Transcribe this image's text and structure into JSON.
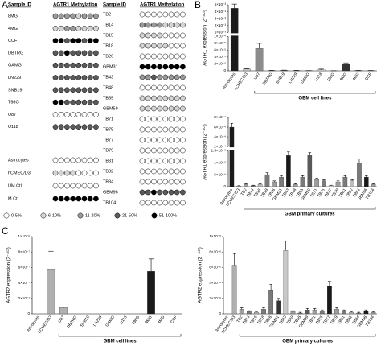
{
  "panel_labels": {
    "a": "A",
    "b": "B",
    "c": "C"
  },
  "methylation": {
    "left": {
      "header_sample": "Sample ID",
      "header_meth": "AGTR1 Methylation",
      "groups": [
        {
          "rows": [
            {
              "sample": "8MG",
              "levels": [
                2,
                2,
                2,
                2,
                1,
                2,
                2,
                2
              ]
            },
            {
              "sample": "4MG",
              "levels": [
                1,
                1,
                2,
                2,
                1,
                1,
                1,
                1
              ]
            },
            {
              "sample": "CCF",
              "levels": [
                4,
                4,
                3,
                4,
                4,
                3,
                4,
                4
              ]
            },
            {
              "sample": "DBTRG",
              "levels": [
                3,
                3,
                4,
                3,
                3,
                3,
                3,
                3
              ]
            },
            {
              "sample": "GAMG",
              "levels": [
                3,
                3,
                3,
                3,
                3,
                3,
                3,
                3
              ]
            },
            {
              "sample": "LN229",
              "levels": [
                3,
                3,
                3,
                3,
                3,
                3,
                3,
                3
              ]
            },
            {
              "sample": "SNB19",
              "levels": [
                3,
                3,
                3,
                3,
                3,
                3,
                3,
                3
              ]
            },
            {
              "sample": "T98G",
              "levels": [
                4,
                4,
                3,
                3,
                3,
                3,
                3,
                3
              ]
            },
            {
              "sample": "U87",
              "levels": [
                0,
                0,
                0,
                0,
                0,
                0,
                0,
                0
              ]
            },
            {
              "sample": "U118",
              "levels": [
                3,
                3,
                3,
                3,
                3,
                3,
                3,
                3
              ]
            }
          ]
        },
        {
          "rows": [
            {
              "sample": "Astrocytes",
              "levels": [
                0,
                0,
                0,
                0,
                0,
                0,
                0,
                0
              ]
            },
            {
              "sample": "hCMEC/D3",
              "levels": [
                1,
                1,
                1,
                1,
                0,
                0,
                0,
                0
              ]
            },
            {
              "sample": "UM Ctl",
              "levels": [
                0,
                0,
                0,
                0,
                0,
                0,
                0,
                0
              ]
            },
            {
              "sample": "M Ctl",
              "levels": [
                4,
                4,
                4,
                4,
                4,
                4,
                4,
                4
              ]
            }
          ]
        }
      ]
    },
    "right": {
      "header_sample": "Sample ID",
      "header_meth": "AGTR1 Methylation",
      "rows": [
        {
          "sample": "TB2",
          "levels": [
            0,
            0,
            0,
            0,
            0,
            0,
            0,
            0
          ]
        },
        {
          "sample": "TB14",
          "levels": [
            2,
            2,
            2,
            2,
            1,
            1,
            1,
            1
          ]
        },
        {
          "sample": "TB15",
          "levels": [
            1,
            1,
            1,
            1,
            0,
            0,
            0,
            0
          ]
        },
        {
          "sample": "TB18",
          "levels": [
            1,
            1,
            1,
            1,
            1,
            0,
            0,
            0
          ]
        },
        {
          "sample": "TB26",
          "levels": [
            0,
            0,
            0,
            0,
            0,
            0,
            0,
            0
          ]
        },
        {
          "sample": "GBM31",
          "levels": [
            4,
            4,
            4,
            4,
            4,
            4,
            4,
            4
          ]
        },
        {
          "sample": "TB43",
          "levels": [
            2,
            2,
            3,
            2,
            2,
            2,
            2,
            2
          ]
        },
        {
          "sample": "TB48",
          "levels": [
            0,
            0,
            0,
            0,
            0,
            0,
            0,
            0
          ]
        },
        {
          "sample": "TB55",
          "levels": [
            1,
            1,
            1,
            1,
            1,
            1,
            1,
            1
          ]
        },
        {
          "sample": "GBM59",
          "levels": [
            1,
            1,
            1,
            1,
            1,
            1,
            1,
            1
          ]
        },
        {
          "sample": "TB71",
          "levels": [
            0,
            0,
            0,
            0,
            0,
            0,
            0,
            0
          ]
        },
        {
          "sample": "TB75",
          "levels": [
            0,
            0,
            0,
            0,
            0,
            0,
            0,
            0
          ]
        },
        {
          "sample": "TB77",
          "levels": [
            0,
            0,
            0,
            0,
            0,
            0,
            0,
            0
          ]
        },
        {
          "sample": "TB79",
          "levels": [
            0,
            0,
            0,
            0,
            0,
            0,
            0,
            0
          ]
        },
        {
          "sample": "TB81",
          "levels": [
            0,
            0,
            0,
            0,
            0,
            0,
            0,
            0
          ]
        },
        {
          "sample": "TB82",
          "levels": [
            0,
            0,
            0,
            0,
            0,
            0,
            0,
            0
          ]
        },
        {
          "sample": "TB84",
          "levels": [
            0,
            0,
            0,
            0,
            0,
            0,
            0,
            0
          ]
        },
        {
          "sample": "GBM96",
          "levels": [
            3,
            3,
            4,
            3,
            3,
            3,
            3,
            3
          ]
        },
        {
          "sample": "TB104",
          "levels": [
            0,
            0,
            0,
            0,
            0,
            0,
            0,
            0
          ]
        }
      ]
    },
    "legend": {
      "labels": [
        "0-5%",
        "6-10%",
        "11-20%",
        "21-50%",
        "51-100%"
      ],
      "colors": [
        "#ffffff",
        "#d4d4d4",
        "#9a9a9a",
        "#5a5a5a",
        "#000000"
      ]
    }
  },
  "chart_data": [
    {
      "type": "bar",
      "ylabel": "AGTR1 expression (2⁻ᐞᶜᵗ)",
      "group_label": "GBM cell lines",
      "categories": [
        "Astrocytes",
        "hCMEC/D3",
        "U87",
        "DBTRG",
        "SNB19",
        "LN229",
        "GAMG",
        "U118",
        "T98G",
        "8MG",
        "4MG",
        "CCF"
      ],
      "values": [
        0.0045,
        5e-06,
        6.5e-05,
        1e-06,
        1.5e-06,
        1e-06,
        5e-07,
        3e-06,
        3e-07,
        2e-05,
        1e-06,
        8e-07
      ],
      "errors": [
        0.0006,
        1e-06,
        1.5e-05,
        3e-07,
        5e-07,
        3e-07,
        2e-07,
        2e-06,
        1e-07,
        3e-06,
        3e-07,
        2e-07
      ],
      "colors": [
        "#1a1a1a",
        "#c8c8c8",
        "#8c8c8c",
        "#9e9e9e",
        "#7a7a7a",
        "#7a7a7a",
        "#7a7a7a",
        "#d9d9d9",
        "#7a7a7a",
        "#333333",
        "#9e9e9e",
        "#7a7a7a"
      ],
      "ylim": [
        0,
        0.0001
      ],
      "yticks": [
        0,
        {
          "value": 2e-05,
          "label": "2×10⁻⁵"
        },
        {
          "value": 4e-05,
          "label": "4×10⁻⁵"
        },
        {
          "value": 6e-05,
          "label": "6×10⁻⁵"
        },
        {
          "value": 8e-05,
          "label": "8×10⁻⁵"
        },
        {
          "value": 0.0001,
          "label": "1×10⁻⁴"
        }
      ],
      "y_break": {
        "ylim": [
          0.001,
          0.005
        ],
        "yticks": [
          {
            "value": 0.001,
            "label": "1×10⁻³"
          },
          {
            "value": 0.002,
            "label": "2×10⁻³"
          },
          {
            "value": 0.003,
            "label": "3×10⁻³"
          },
          {
            "value": 0.004,
            "label": "4×10⁻³"
          },
          {
            "value": 0.005,
            "label": "5×10⁻³"
          }
        ]
      }
    },
    {
      "type": "bar",
      "ylabel": "AGTR1 expression (2⁻ᐞᶜᵗ)",
      "group_label": "GBM primary cultures",
      "categories": [
        "Astrocytes",
        "hCMEC/D3",
        "TB2",
        "TB14",
        "TB15",
        "TB18",
        "TB26",
        "GBM31",
        "TB43",
        "TB48",
        "TB55",
        "GBM59",
        "TB71",
        "TB75",
        "TB77",
        "TB79",
        "TB81",
        "TB82",
        "TB84",
        "GBM96",
        "TB104"
      ],
      "values": [
        0.0006,
        3e-07,
        1e-06,
        5e-07,
        1e-06,
        5e-06,
        2e-06,
        4e-06,
        1.3e-05,
        1e-06,
        4e-06,
        1.3e-05,
        3e-06,
        2.5e-06,
        5e-07,
        2e-06,
        4e-06,
        2.5e-06,
        1e-05,
        4e-06,
        1e-06
      ],
      "errors": [
        8e-05,
        1e-07,
        2e-07,
        1e-07,
        2e-07,
        8e-07,
        4e-07,
        6e-07,
        1.5e-06,
        2e-07,
        6e-07,
        1.2e-06,
        5e-07,
        4e-07,
        1e-07,
        4e-07,
        6e-07,
        4e-07,
        1.5e-06,
        6e-07,
        2e-07
      ],
      "colors": [
        "#1a1a1a",
        "#c8c8c8",
        "#9e9e9e",
        "#7a7a7a",
        "#bdbdbd",
        "#7a7a7a",
        "#9e9e9e",
        "#7a7a7a",
        "#1a1a1a",
        "#9e9e9e",
        "#7a7a7a",
        "#5a5a5a",
        "#9e9e9e",
        "#7a7a7a",
        "#d9d9d9",
        "#9e9e9e",
        "#7a7a7a",
        "#bdbdbd",
        "#7a7a7a",
        "#1a1a1a",
        "#9e9e9e"
      ],
      "ylim": [
        0,
        1.5e-05
      ],
      "yticks": [
        0,
        {
          "value": 5e-06,
          "label": "5×10⁻⁶"
        },
        {
          "value": 1e-05,
          "label": "1×10⁻⁵"
        },
        {
          "value": 1.5e-05,
          "label": "1.5×10⁻⁵"
        }
      ],
      "y_break": {
        "ylim": [
          0.0002,
          0.0008
        ],
        "yticks": [
          {
            "value": 0.0002,
            "label": "2×10⁻⁴"
          },
          {
            "value": 0.0004,
            "label": "4×10⁻⁴"
          },
          {
            "value": 0.0006,
            "label": "6×10⁻⁴"
          },
          {
            "value": 0.0008,
            "label": "8×10⁻⁴"
          }
        ]
      }
    },
    {
      "type": "bar",
      "ylabel": "AGTR2 expression (2⁻ᐞᶜᵗ)",
      "group_label": "GBM cell lines",
      "categories": [
        "Astrocytes",
        "hCMEC/D3",
        "U87",
        "DBTRG",
        "SNB19",
        "LN229",
        "GAMG",
        "U118",
        "T98G",
        "8MG",
        "4MG",
        "CCF"
      ],
      "values": [
        0,
        5.8e-07,
        8e-08,
        0,
        0,
        0,
        0,
        0,
        0,
        5.5e-07,
        0,
        0
      ],
      "errors": [
        0,
        2.3e-07,
        1e-08,
        0,
        0,
        0,
        0,
        0,
        0,
        1.6e-07,
        0,
        0
      ],
      "colors": [
        "#1a1a1a",
        "#b0b0b0",
        "#b0b0b0",
        "#9e9e9e",
        "#7a7a7a",
        "#7a7a7a",
        "#7a7a7a",
        "#d9d9d9",
        "#7a7a7a",
        "#1a1a1a",
        "#9e9e9e",
        "#7a7a7a"
      ],
      "ylim": [
        0,
        1e-06
      ],
      "yticks": [
        0,
        {
          "value": 2e-07,
          "label": "2×10⁻⁷"
        },
        {
          "value": 4e-07,
          "label": "4×10⁻⁷"
        },
        {
          "value": 6e-07,
          "label": "6×10⁻⁷"
        },
        {
          "value": 8e-07,
          "label": "8×10⁻⁷"
        },
        {
          "value": 1e-06,
          "label": "1×10⁻⁶"
        }
      ]
    },
    {
      "type": "bar",
      "ylabel": "AGTR2 expression (2⁻ᐞᶜᵗ)",
      "group_label": "GBM primary cultures",
      "categories": [
        "Astrocytes",
        "hCMEC/D3",
        "TB2",
        "TB14",
        "TB15",
        "TB18",
        "TB26",
        "GBM31",
        "TB43",
        "TB48",
        "TB55",
        "GBM59",
        "TB71",
        "TB75",
        "TB77",
        "TB79",
        "TB81",
        "TB82",
        "TB84",
        "GBM96",
        "TB104"
      ],
      "values": [
        0,
        6.3e-06,
        6e-07,
        3e-07,
        2e-07,
        6e-07,
        3e-06,
        1.7e-06,
        8.2e-06,
        3e-07,
        1e-07,
        5e-07,
        5e-07,
        4e-07,
        3.6e-06,
        6e-07,
        4e-07,
        2e-07,
        1e-07,
        4e-07,
        2e-07
      ],
      "errors": [
        0,
        1.5e-06,
        2e-07,
        1e-07,
        1e-07,
        2e-07,
        8e-07,
        3e-07,
        1.2e-06,
        1e-07,
        1e-07,
        2e-07,
        2e-07,
        1e-07,
        6e-07,
        2e-07,
        1e-07,
        1e-07,
        1e-07,
        1e-07,
        1e-07
      ],
      "colors": [
        "#1a1a1a",
        "#b0b0b0",
        "#9e9e9e",
        "#7a7a7a",
        "#bdbdbd",
        "#7a7a7a",
        "#7a7a7a",
        "#333333",
        "#c8c8c8",
        "#9e9e9e",
        "#7a7a7a",
        "#5a5a5a",
        "#9e9e9e",
        "#7a7a7a",
        "#1a1a1a",
        "#9e9e9e",
        "#7a7a7a",
        "#bdbdbd",
        "#7a7a7a",
        "#1a1a1a",
        "#9e9e9e"
      ],
      "ylim": [
        0,
        1e-05
      ],
      "yticks": [
        0,
        {
          "value": 2e-06,
          "label": "2×10⁻⁶"
        },
        {
          "value": 4e-06,
          "label": "4×10⁻⁶"
        },
        {
          "value": 6e-06,
          "label": "6×10⁻⁶"
        },
        {
          "value": 8e-06,
          "label": "8×10⁻⁶"
        },
        {
          "value": 1e-05,
          "label": "1×10⁻⁵"
        }
      ]
    }
  ]
}
